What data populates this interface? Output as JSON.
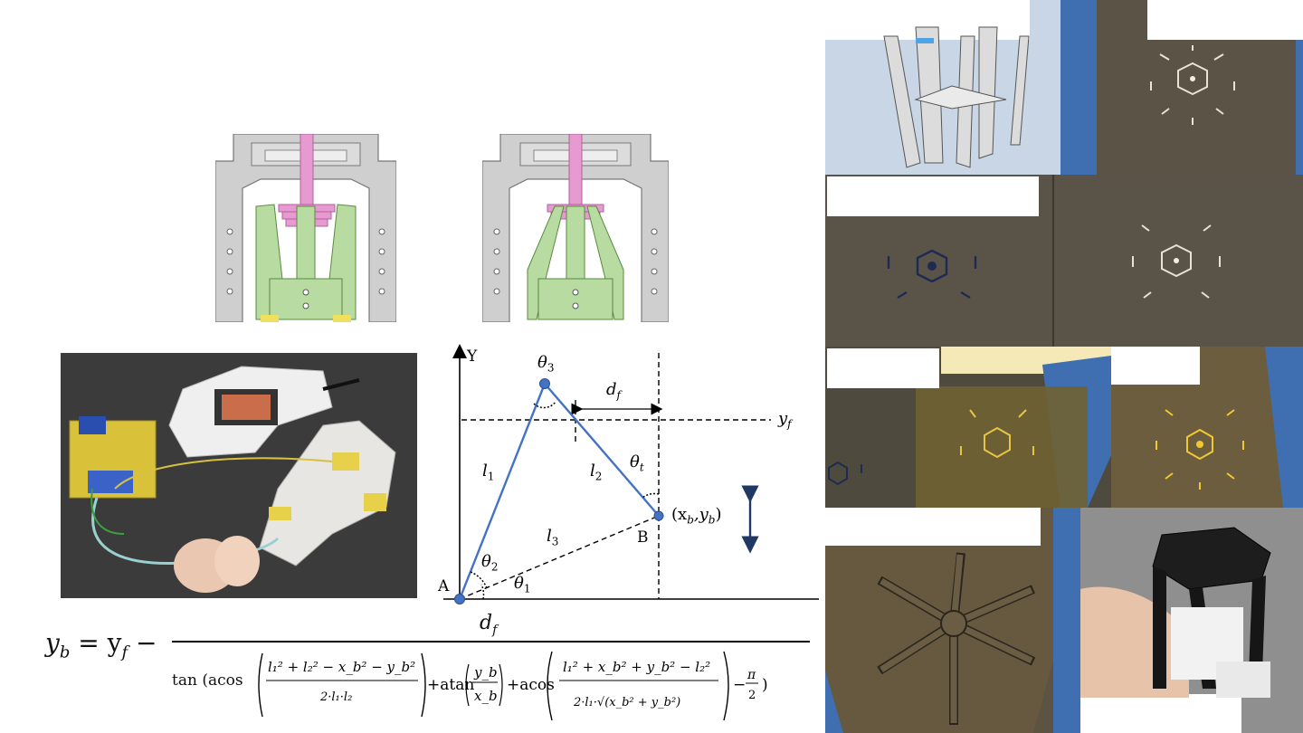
{
  "diagram": {
    "axis_y_label": "Y",
    "point_a_label": "A",
    "point_b_label": "B",
    "theta1": "θ",
    "theta1_sub": "1",
    "theta2": "θ",
    "theta2_sub": "2",
    "theta3": "θ",
    "theta3_sub": "3",
    "thetat": "θ",
    "thetat_sub": "t",
    "l1": "l",
    "l1_sub": "1",
    "l2": "l",
    "l2_sub": "2",
    "l3": "l",
    "l3_sub": "3",
    "df": "d",
    "df_sub": "f",
    "yf": "y",
    "yf_sub": "f",
    "xb_yb": "(x",
    "xb_sub": "b",
    "comma_y": ",y",
    "yb_sub": "b",
    "close_paren": ")"
  },
  "equation": {
    "lhs": "y",
    "lhs_sub": "b",
    "eq_sign": "= y",
    "yf_sub": "f",
    "minus": "−",
    "numerator": "d",
    "numerator_sub": "f",
    "tan": "tan (acos",
    "atan": "+atan",
    "acos2": "+acos",
    "minus_pi": "−",
    "pi": "π",
    "two": "2",
    "close": ")"
  },
  "colors": {
    "link_blue": "#4472c4",
    "arrow_navy": "#1f3864",
    "cad_green": "#b7dba0",
    "cad_pink": "#e79ad0",
    "cad_gray": "#c8c8c8",
    "carbon": "#5b5346",
    "tape_blue": "#3f6fb0"
  }
}
